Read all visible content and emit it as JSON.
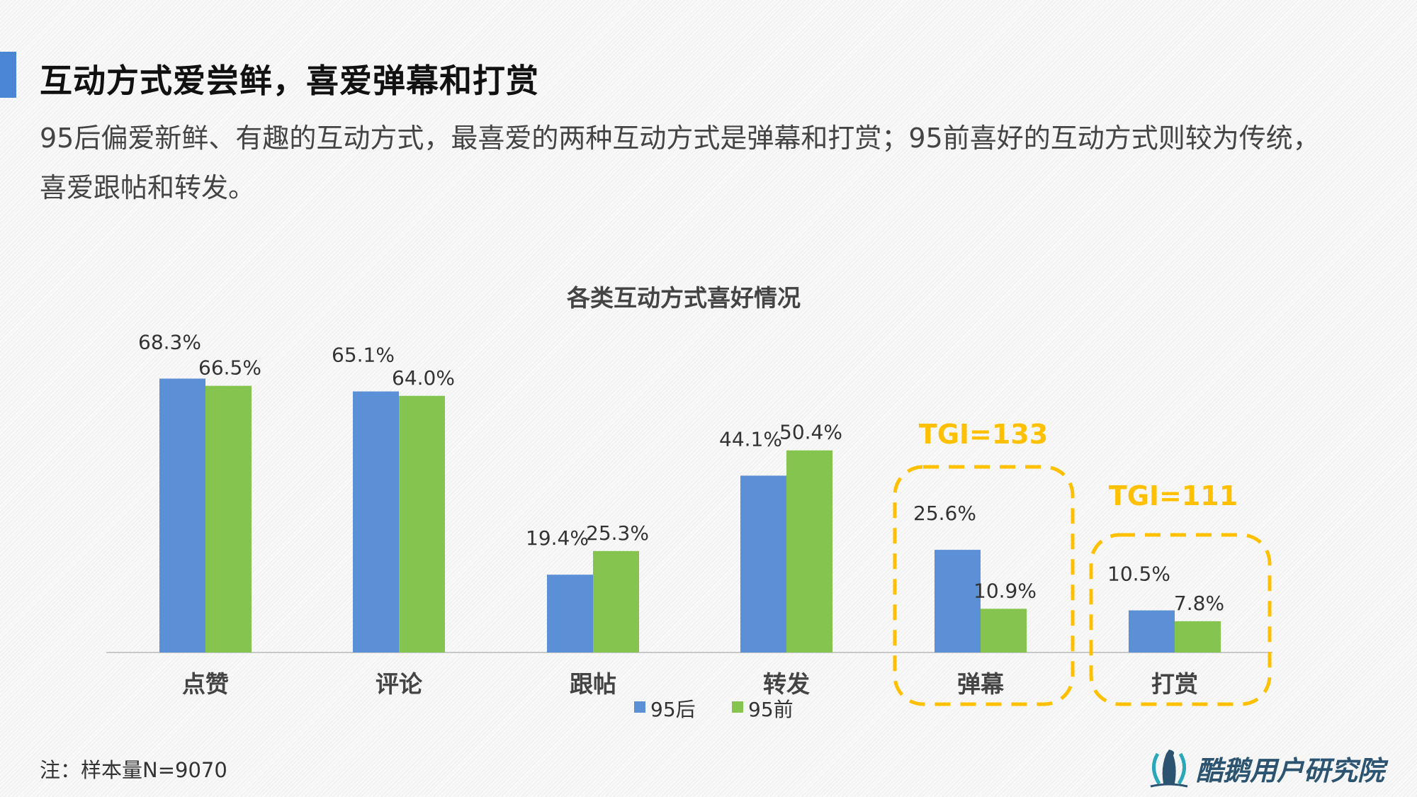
{
  "header": {
    "title": "互动方式爱尝鲜，喜爱弹幕和打赏",
    "subtitle": "95后偏爱新鲜、有趣的互动方式，最喜爱的两种互动方式是弹幕和打赏；95前喜好的互动方式则较为传统，喜爱跟帖和转发。"
  },
  "footer": {
    "note": "注：样本量N=9070",
    "logo_text": "酷鹅用户研究院"
  },
  "colors": {
    "series_95hou": "#5b8fd6",
    "series_95qian": "#84c44f",
    "highlight": "#ffc000",
    "accent": "#4a86d4"
  },
  "chart_data": {
    "type": "bar",
    "title": "各类互动方式喜好情况",
    "categories": [
      "点赞",
      "评论",
      "跟帖",
      "转发",
      "弹幕",
      "打赏"
    ],
    "series": [
      {
        "name": "95后",
        "values": [
          68.3,
          65.1,
          19.4,
          44.1,
          25.6,
          10.5
        ]
      },
      {
        "name": "95前",
        "values": [
          66.5,
          64.0,
          25.3,
          50.4,
          10.9,
          7.8
        ]
      }
    ],
    "value_format": "%",
    "ylim": [
      0,
      70
    ],
    "grid": false,
    "legend": "bottom",
    "annotations": [
      {
        "category": "弹幕",
        "text": "TGI=133"
      },
      {
        "category": "打赏",
        "text": "TGI=111"
      }
    ]
  }
}
